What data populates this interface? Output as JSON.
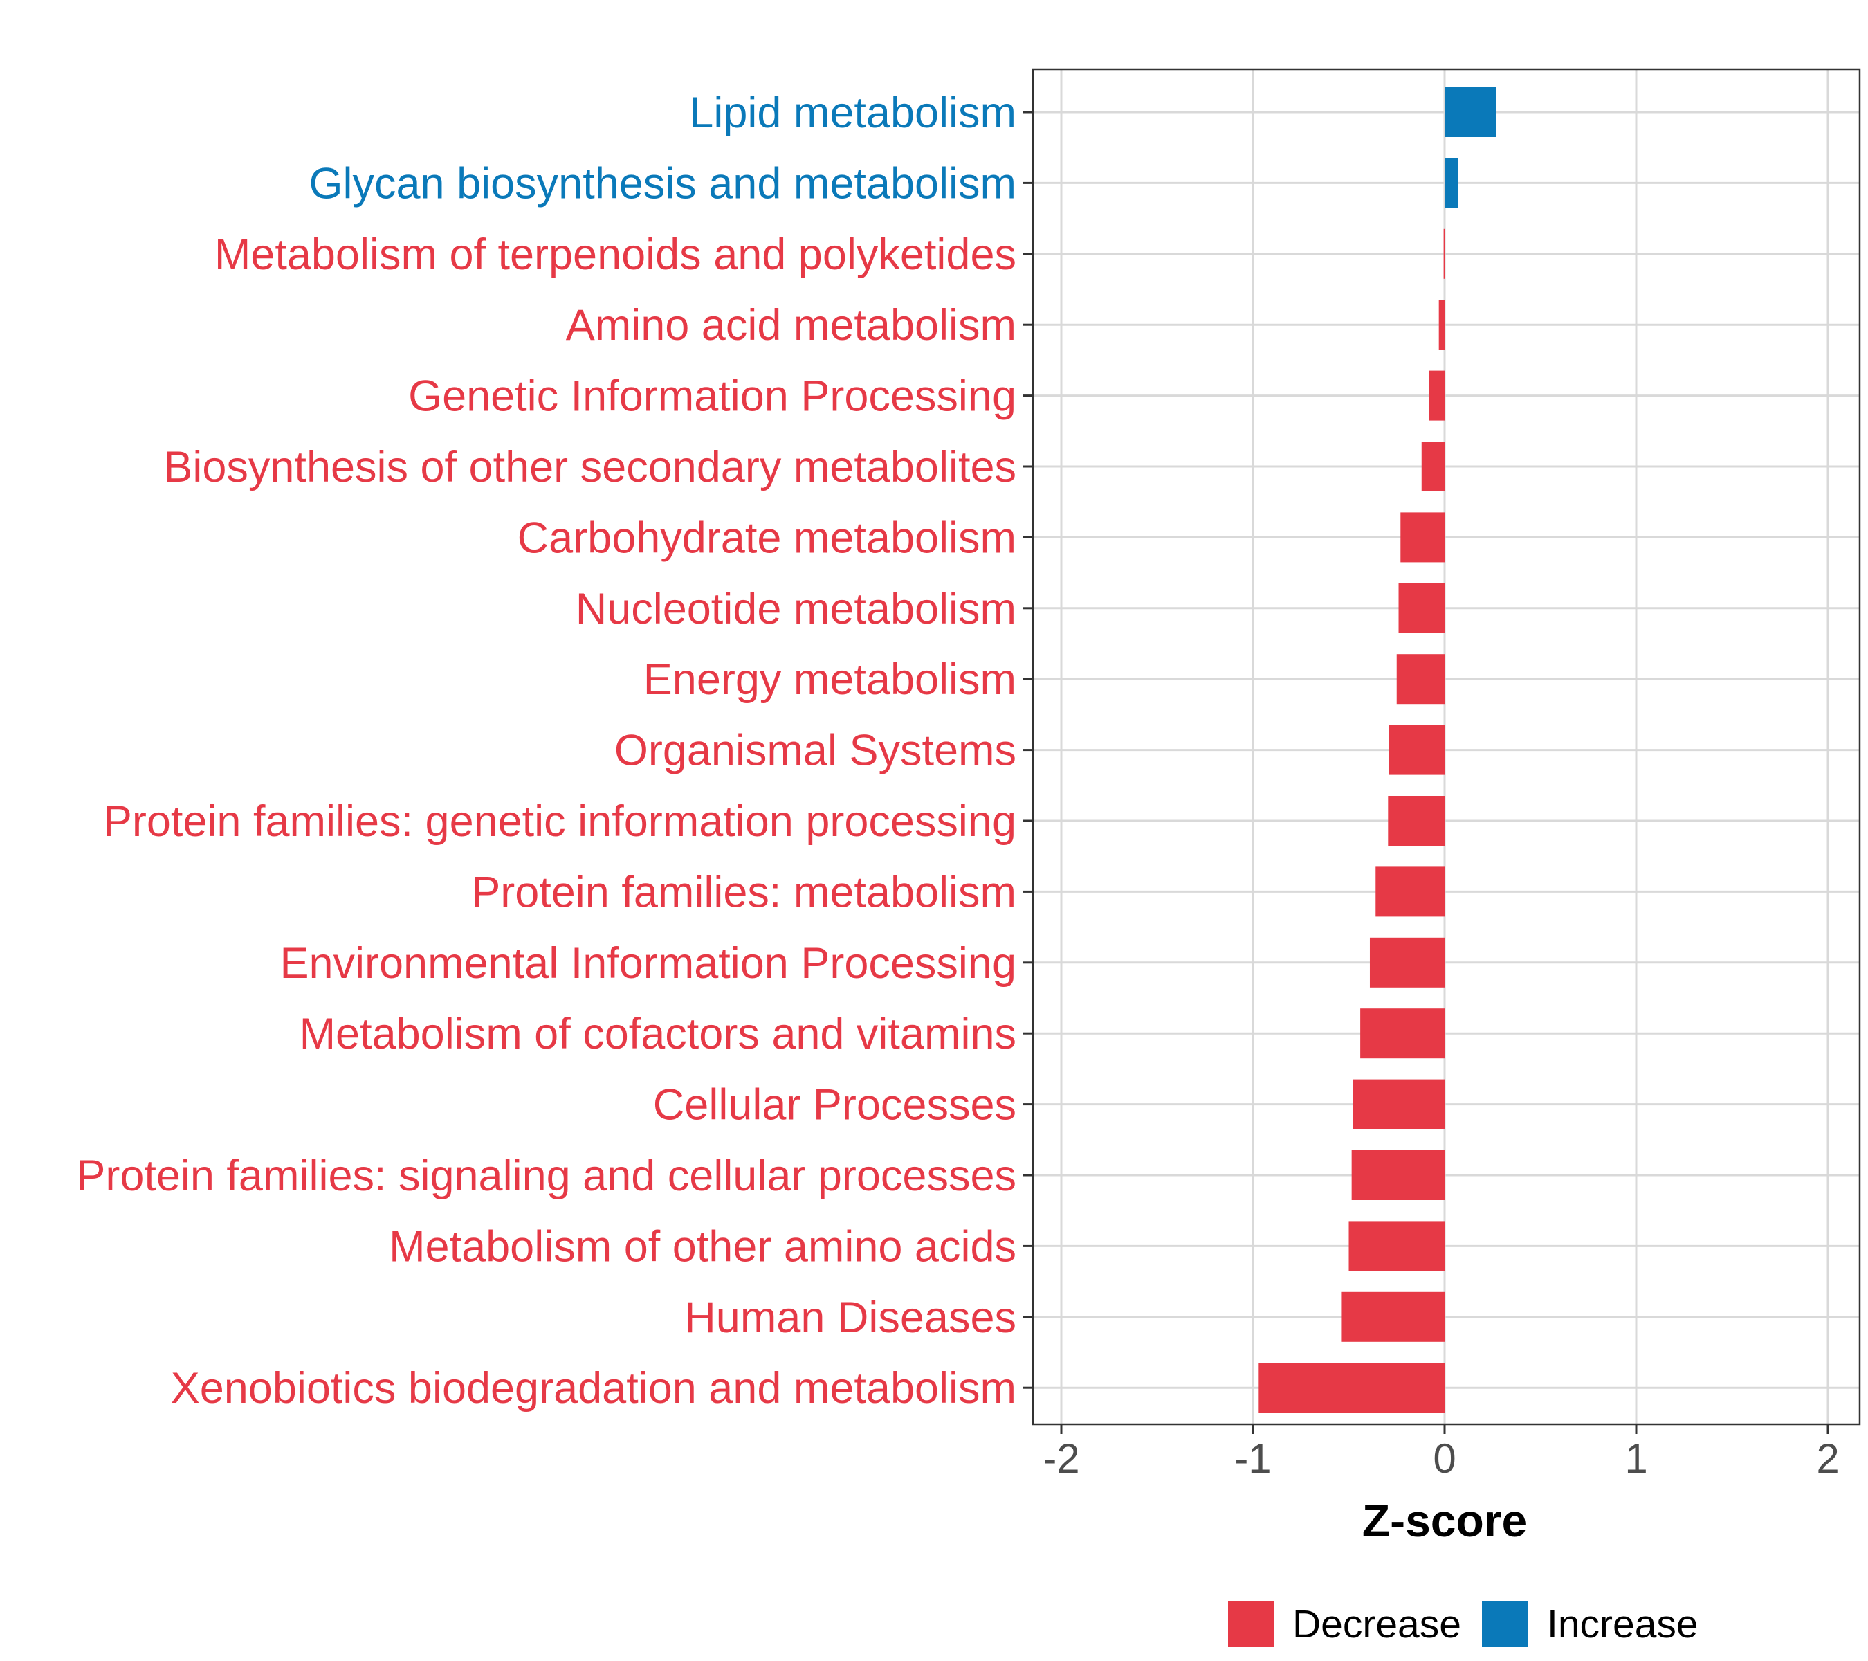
{
  "chart_data": {
    "type": "bar",
    "orientation": "horizontal",
    "title": "",
    "xlabel": "Z-score",
    "ylabel": "",
    "xlim": [
      -2.15,
      2.15
    ],
    "x_ticks": [
      -2,
      -1,
      0,
      1,
      2
    ],
    "x_tick_labels": [
      "-2",
      "-1",
      "0",
      "1",
      "2"
    ],
    "grid": true,
    "categories": [
      "Lipid metabolism",
      "Glycan biosynthesis and metabolism",
      "Metabolism of terpenoids and polyketides",
      "Amino acid metabolism",
      "Genetic Information Processing",
      "Biosynthesis of other secondary metabolites",
      "Carbohydrate metabolism",
      "Nucleotide metabolism",
      "Energy metabolism",
      "Organismal Systems",
      "Protein families: genetic information processing",
      "Protein families: metabolism",
      "Environmental Information Processing",
      "Metabolism of cofactors and vitamins",
      "Cellular Processes",
      "Protein families: signaling and cellular processes",
      "Metabolism of other amino acids",
      "Human Diseases",
      "Xenobiotics biodegradation and metabolism"
    ],
    "values": [
      0.27,
      0.07,
      -0.005,
      -0.03,
      -0.08,
      -0.12,
      -0.23,
      -0.24,
      -0.25,
      -0.29,
      -0.295,
      -0.36,
      -0.39,
      -0.44,
      -0.48,
      -0.485,
      -0.5,
      -0.54,
      -0.97
    ],
    "direction": [
      "Increase",
      "Increase",
      "Decrease",
      "Decrease",
      "Decrease",
      "Decrease",
      "Decrease",
      "Decrease",
      "Decrease",
      "Decrease",
      "Decrease",
      "Decrease",
      "Decrease",
      "Decrease",
      "Decrease",
      "Decrease",
      "Decrease",
      "Decrease",
      "Decrease"
    ],
    "legend": {
      "position": "bottom",
      "entries": [
        {
          "label": "Decrease",
          "color": "#e63946"
        },
        {
          "label": "Increase",
          "color": "#0a79b9"
        }
      ]
    },
    "colors": {
      "Decrease": "#e63946",
      "Increase": "#0a79b9"
    }
  }
}
